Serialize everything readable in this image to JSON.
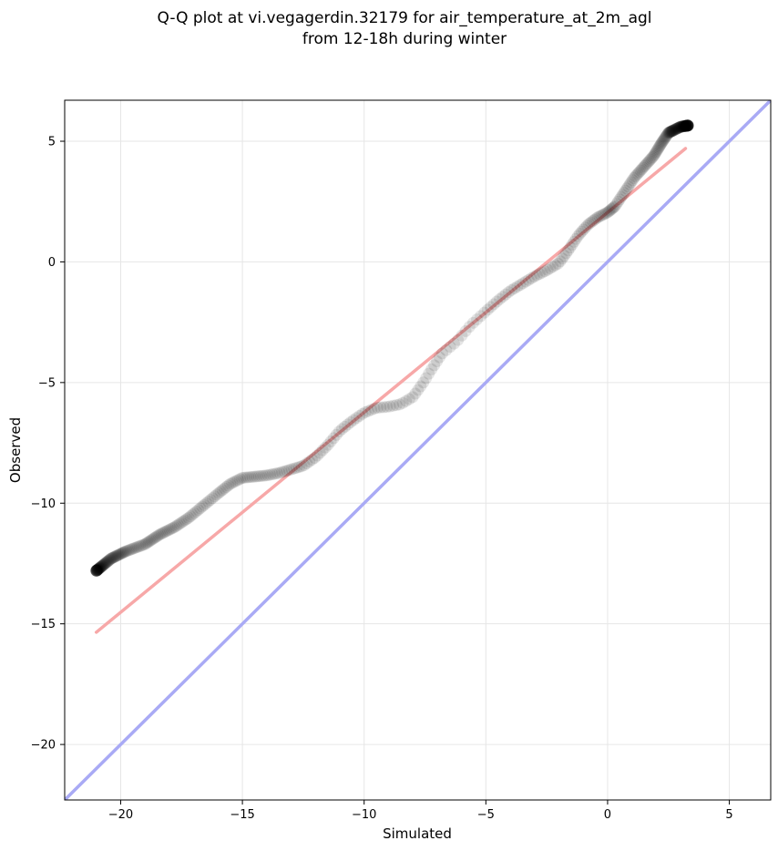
{
  "chart_data": {
    "type": "scatter",
    "title_line1": "Q-Q plot at vi.vegagerdin.32179 for air_temperature_at_2m_agl",
    "title_line2": "from 12-18h during winter",
    "xlabel": "Simulated",
    "ylabel": "Observed",
    "xlim": [
      -22.3,
      6.7
    ],
    "ylim": [
      -22.3,
      6.7
    ],
    "xticks": [
      -20,
      -15,
      -10,
      -5,
      0,
      5
    ],
    "yticks": [
      -20,
      -15,
      -10,
      -5,
      0,
      5
    ],
    "xtick_labels": [
      "−20",
      "−15",
      "−10",
      "−5",
      "0",
      "5"
    ],
    "ytick_labels": [
      "−20",
      "−15",
      "−10",
      "−5",
      "0",
      "5"
    ],
    "grid": true,
    "colors": {
      "points": "#000000",
      "fit_line": "#f7a8a8",
      "identity_line": "#a9aaf5"
    },
    "identity_line": {
      "name": "y = x",
      "from": [
        -22.3,
        -22.3
      ],
      "to": [
        6.7,
        6.7
      ]
    },
    "fit_line": {
      "from": [
        -21.0,
        -15.35
      ],
      "to": [
        3.2,
        4.7
      ]
    },
    "quantile_path": [
      [
        -21.0,
        -12.8
      ],
      [
        -20.4,
        -12.3
      ],
      [
        -19.8,
        -12.0
      ],
      [
        -19.0,
        -11.7
      ],
      [
        -18.4,
        -11.3
      ],
      [
        -17.8,
        -11.0
      ],
      [
        -17.2,
        -10.6
      ],
      [
        -16.6,
        -10.1
      ],
      [
        -16.0,
        -9.6
      ],
      [
        -15.5,
        -9.2
      ],
      [
        -15.0,
        -8.95
      ],
      [
        -14.5,
        -8.9
      ],
      [
        -14.0,
        -8.85
      ],
      [
        -13.5,
        -8.75
      ],
      [
        -13.0,
        -8.6
      ],
      [
        -12.5,
        -8.45
      ],
      [
        -12.0,
        -8.1
      ],
      [
        -11.5,
        -7.6
      ],
      [
        -11.0,
        -7.0
      ],
      [
        -10.5,
        -6.6
      ],
      [
        -10.0,
        -6.25
      ],
      [
        -9.5,
        -6.05
      ],
      [
        -9.0,
        -6.0
      ],
      [
        -8.5,
        -5.9
      ],
      [
        -8.0,
        -5.6
      ],
      [
        -7.6,
        -5.05
      ],
      [
        -7.2,
        -4.4
      ],
      [
        -6.8,
        -3.8
      ],
      [
        -6.2,
        -3.3
      ],
      [
        -5.6,
        -2.6
      ],
      [
        -5.0,
        -2.05
      ],
      [
        -4.5,
        -1.6
      ],
      [
        -4.0,
        -1.2
      ],
      [
        -3.5,
        -0.9
      ],
      [
        -3.0,
        -0.6
      ],
      [
        -2.5,
        -0.35
      ],
      [
        -2.0,
        -0.05
      ],
      [
        -1.6,
        0.5
      ],
      [
        -1.2,
        1.1
      ],
      [
        -0.8,
        1.55
      ],
      [
        -0.4,
        1.85
      ],
      [
        0.0,
        2.05
      ],
      [
        0.3,
        2.3
      ],
      [
        0.7,
        2.9
      ],
      [
        1.1,
        3.5
      ],
      [
        1.5,
        3.95
      ],
      [
        1.9,
        4.4
      ],
      [
        2.2,
        4.9
      ],
      [
        2.5,
        5.35
      ],
      [
        2.7,
        5.45
      ],
      [
        3.0,
        5.6
      ],
      [
        3.3,
        5.65
      ]
    ],
    "point_count": 400
  }
}
